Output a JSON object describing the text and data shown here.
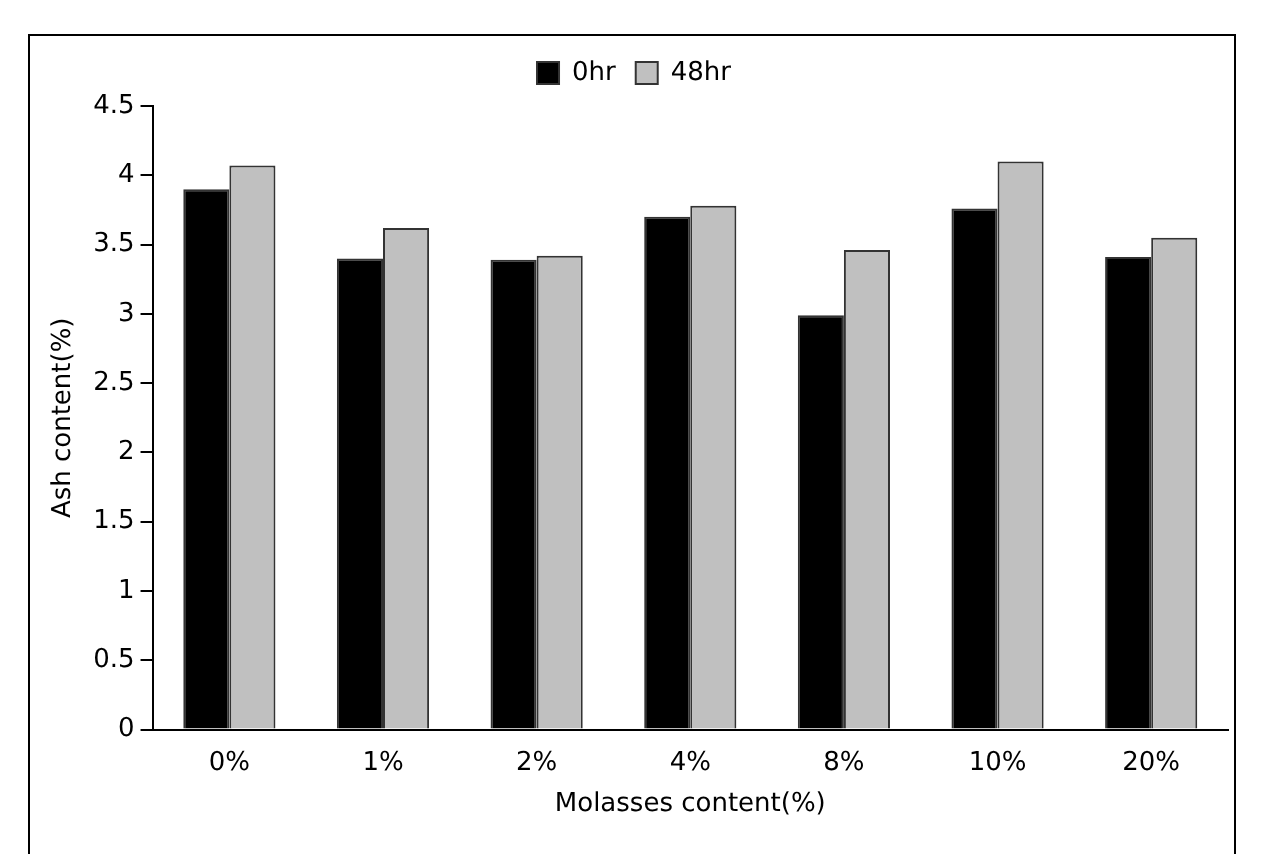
{
  "chart_data": {
    "type": "bar",
    "xlabel": "Molasses content(%)",
    "ylabel": "Ash content(%)",
    "categories": [
      "0%",
      "1%",
      "2%",
      "4%",
      "8%",
      "10%",
      "20%"
    ],
    "series": [
      {
        "name": "0hr",
        "color": "#000000",
        "values": [
          3.9,
          3.4,
          3.39,
          3.7,
          2.99,
          3.76,
          3.41
        ]
      },
      {
        "name": "48hr",
        "color": "#c0c0c0",
        "values": [
          4.07,
          3.62,
          3.42,
          3.78,
          3.46,
          4.1,
          3.55
        ]
      }
    ],
    "ylim": [
      0,
      4.5
    ],
    "yticks": [
      0,
      0.5,
      1,
      1.5,
      2,
      2.5,
      3,
      3.5,
      4,
      4.5
    ],
    "grid": false,
    "legend": "top"
  }
}
